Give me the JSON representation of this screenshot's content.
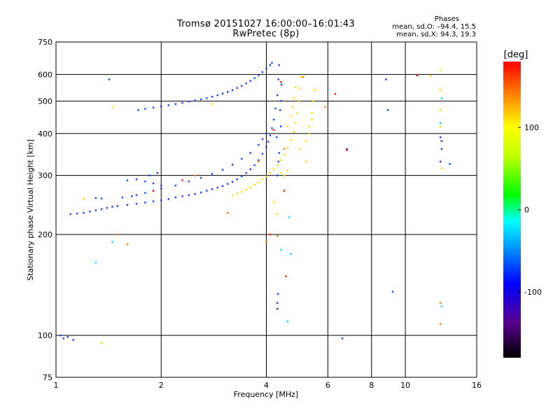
{
  "header": {
    "title_line1": "Tromsø 20151027 16:00:00–16:01:43",
    "title_line2": "RwPretec (8p)",
    "phases_title": "Phases",
    "phases_o": "mean, sd,O: –94.4, 15.5",
    "phases_x": "mean, sd,X:  94.3, 19.3"
  },
  "colors": {
    "o_mode": "#1a3cff",
    "x_mode": "#ffd800",
    "grid": "#000000"
  },
  "chart_data": {
    "type": "scatter",
    "xlabel": "Frequency [MHz]",
    "ylabel": "Stationary phase Virtual Height [km]",
    "x_scale": "log2",
    "y_scale": "log",
    "xlim": [
      1,
      16
    ],
    "ylim": [
      75,
      750
    ],
    "x_ticks": [
      1,
      2,
      4,
      6,
      8,
      10,
      16
    ],
    "x_tick_labels": [
      "1",
      "2",
      "4",
      "6",
      "8",
      "10",
      "16"
    ],
    "y_ticks": [
      75,
      100,
      200,
      300,
      400,
      500,
      600,
      750
    ],
    "y_tick_labels": [
      "75",
      "100",
      "200",
      "300",
      "400",
      "500",
      "600",
      "750"
    ],
    "grid": true,
    "colorbar": {
      "label": "[deg]",
      "range": [
        -180,
        180
      ],
      "ticks": [
        100,
        0,
        -100
      ],
      "tick_labels": [
        "100",
        "0",
        "-100"
      ]
    },
    "series": [
      {
        "color": "#1a3cff",
        "phase": -94.4,
        "points": [
          [
            1.1,
            230
          ],
          [
            1.15,
            231
          ],
          [
            1.2,
            232
          ],
          [
            1.25,
            234
          ],
          [
            1.3,
            236
          ],
          [
            1.35,
            238
          ],
          [
            1.4,
            240
          ],
          [
            1.45,
            242
          ],
          [
            1.5,
            243
          ],
          [
            1.6,
            245
          ],
          [
            1.7,
            247
          ],
          [
            1.8,
            249
          ],
          [
            1.9,
            251
          ],
          [
            2.0,
            253
          ],
          [
            2.1,
            255
          ],
          [
            2.2,
            258
          ],
          [
            2.3,
            260
          ],
          [
            2.4,
            262
          ],
          [
            2.5,
            264
          ],
          [
            2.6,
            267
          ],
          [
            2.7,
            270
          ],
          [
            2.8,
            273
          ],
          [
            2.9,
            276
          ],
          [
            3.0,
            279
          ],
          [
            3.1,
            283
          ],
          [
            3.2,
            287
          ],
          [
            3.3,
            292
          ],
          [
            3.4,
            298
          ],
          [
            3.5,
            305
          ],
          [
            3.6,
            313
          ],
          [
            3.7,
            322
          ],
          [
            3.8,
            333
          ],
          [
            3.9,
            348
          ],
          [
            4.0,
            365
          ],
          [
            4.05,
            378
          ],
          [
            4.1,
            395
          ],
          [
            4.15,
            415
          ],
          [
            4.2,
            440
          ],
          [
            4.25,
            475
          ],
          [
            4.3,
            520
          ],
          [
            4.33,
            580
          ],
          [
            4.35,
            640
          ],
          [
            1.7,
            262
          ],
          [
            1.8,
            266
          ],
          [
            1.9,
            270
          ],
          [
            2.0,
            274
          ],
          [
            2.2,
            280
          ],
          [
            2.4,
            288
          ],
          [
            2.6,
            295
          ],
          [
            2.8,
            303
          ],
          [
            3.0,
            312
          ],
          [
            3.2,
            323
          ],
          [
            3.4,
            336
          ],
          [
            3.6,
            350
          ],
          [
            3.8,
            370
          ],
          [
            3.9,
            385
          ],
          [
            4.0,
            400
          ],
          [
            1.6,
            290
          ],
          [
            1.7,
            292
          ],
          [
            1.8,
            288
          ],
          [
            1.9,
            284
          ],
          [
            2.0,
            280
          ],
          [
            1.55,
            258
          ],
          [
            1.65,
            260
          ],
          [
            1.85,
            300
          ],
          [
            1.95,
            305
          ],
          [
            4.3,
            300
          ],
          [
            4.35,
            350
          ],
          [
            4.4,
            420
          ],
          [
            4.4,
            500
          ],
          [
            4.42,
            560
          ],
          [
            4.38,
            470
          ],
          [
            4.28,
            390
          ],
          [
            4.33,
            330
          ],
          [
            1.72,
            470
          ],
          [
            1.8,
            474
          ],
          [
            1.9,
            478
          ],
          [
            2.0,
            482
          ],
          [
            2.1,
            486
          ],
          [
            2.2,
            490
          ],
          [
            2.3,
            494
          ],
          [
            2.4,
            498
          ],
          [
            2.5,
            502
          ],
          [
            2.6,
            506
          ],
          [
            2.7,
            510
          ],
          [
            2.8,
            515
          ],
          [
            2.9,
            520
          ],
          [
            3.0,
            526
          ],
          [
            3.1,
            532
          ],
          [
            3.2,
            539
          ],
          [
            3.3,
            547
          ],
          [
            3.4,
            555
          ],
          [
            3.5,
            564
          ],
          [
            3.6,
            574
          ],
          [
            3.7,
            585
          ],
          [
            3.8,
            597
          ],
          [
            3.9,
            610
          ],
          [
            4.0,
            625
          ],
          [
            4.1,
            640
          ],
          [
            4.15,
            650
          ],
          [
            1.03,
            100
          ],
          [
            1.05,
            98
          ],
          [
            1.08,
            99
          ],
          [
            1.12,
            97
          ],
          [
            1.42,
            580
          ],
          [
            4.3,
            125
          ],
          [
            4.32,
            133
          ],
          [
            6.6,
            98
          ],
          [
            8.8,
            580
          ],
          [
            8.9,
            470
          ],
          [
            9.2,
            135
          ],
          [
            12.6,
            390
          ],
          [
            12.7,
            360
          ],
          [
            13.4,
            325
          ],
          [
            1.3,
            257
          ],
          [
            1.35,
            256
          ]
        ]
      },
      {
        "color": "#ffd800",
        "phase": 94.3,
        "points": [
          [
            3.2,
            262
          ],
          [
            3.3,
            265
          ],
          [
            3.4,
            268
          ],
          [
            3.5,
            272
          ],
          [
            3.6,
            276
          ],
          [
            3.7,
            281
          ],
          [
            3.8,
            286
          ],
          [
            3.9,
            292
          ],
          [
            4.0,
            298
          ],
          [
            4.1,
            305
          ],
          [
            4.2,
            313
          ],
          [
            4.3,
            322
          ],
          [
            4.4,
            333
          ],
          [
            4.5,
            346
          ],
          [
            4.6,
            362
          ],
          [
            4.7,
            382
          ],
          [
            4.8,
            405
          ],
          [
            4.85,
            430
          ],
          [
            4.9,
            460
          ],
          [
            4.95,
            500
          ],
          [
            5.0,
            545
          ],
          [
            5.02,
            590
          ],
          [
            4.6,
            420
          ],
          [
            4.7,
            450
          ],
          [
            4.75,
            480
          ],
          [
            4.8,
            510
          ],
          [
            4.85,
            550
          ],
          [
            5.2,
            380
          ],
          [
            5.3,
            420
          ],
          [
            5.4,
            460
          ],
          [
            5.45,
            500
          ],
          [
            5.5,
            540
          ],
          [
            5.3,
            400
          ],
          [
            5.4,
            440
          ],
          [
            4.5,
            300
          ],
          [
            4.6,
            310
          ],
          [
            4.4,
            305
          ],
          [
            5.2,
            330
          ],
          [
            5.0,
            360
          ],
          [
            1.2,
            255
          ],
          [
            1.45,
            480
          ],
          [
            1.35,
            95
          ],
          [
            4.2,
            250
          ],
          [
            4.3,
            230
          ],
          [
            12.6,
            620
          ],
          [
            12.6,
            470
          ],
          [
            12.6,
            420
          ],
          [
            12.7,
            315
          ],
          [
            11.8,
            595
          ],
          [
            2.8,
            490
          ],
          [
            12.6,
            540
          ]
        ]
      },
      {
        "color": "#ff7a00",
        "phase": 140,
        "points": [
          [
            3.1,
            232
          ],
          [
            4.3,
            198
          ],
          [
            4.0,
            190
          ],
          [
            5.9,
            480
          ],
          [
            12.6,
            125
          ],
          [
            12.6,
            108
          ],
          [
            1.5,
            200
          ],
          [
            1.6,
            187
          ],
          [
            4.5,
            360
          ],
          [
            3.8,
            330
          ],
          [
            2.5,
            300
          ],
          [
            5.1,
            590
          ]
        ]
      },
      {
        "color": "#00d8ff",
        "phase": -20,
        "points": [
          [
            1.3,
            165
          ],
          [
            1.45,
            190
          ],
          [
            4.6,
            110
          ],
          [
            4.7,
            175
          ],
          [
            4.4,
            180
          ],
          [
            12.7,
            122
          ],
          [
            12.6,
            430
          ],
          [
            12.7,
            510
          ],
          [
            4.65,
            225
          ]
        ]
      },
      {
        "color": "#ff1010",
        "phase": 175,
        "points": [
          [
            6.3,
            525
          ],
          [
            6.8,
            360
          ],
          [
            4.55,
            150
          ],
          [
            4.4,
            570
          ],
          [
            4.5,
            270
          ],
          [
            4.2,
            410
          ],
          [
            1.9,
            270
          ],
          [
            2.3,
            290
          ],
          [
            10.8,
            596
          ],
          [
            4.1,
            200
          ]
        ]
      },
      {
        "color": "#8a00c0",
        "phase": -150,
        "points": [
          [
            12.7,
            380
          ],
          [
            12.6,
            330
          ],
          [
            6.8,
            357
          ],
          [
            4.3,
            120
          ]
        ]
      }
    ]
  }
}
